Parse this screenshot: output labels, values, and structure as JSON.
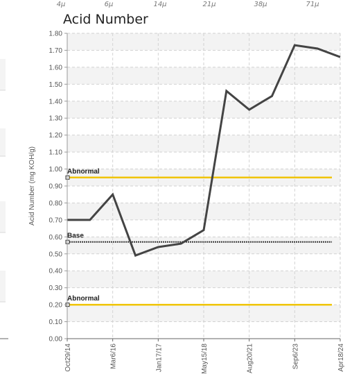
{
  "top_ticks": [
    "4μ",
    "6μ",
    "14μ",
    "21μ",
    "38μ",
    "71μ"
  ],
  "chart_data": {
    "type": "line",
    "title": "Acid Number",
    "ylabel": "Acid Number (mg KOH/g)",
    "xlabel": "",
    "ylim": [
      0.0,
      1.8
    ],
    "y_ticks": [
      "0.00",
      "0.10",
      "0.20",
      "0.30",
      "0.40",
      "0.50",
      "0.60",
      "0.70",
      "0.80",
      "0.90",
      "1.00",
      "1.10",
      "1.20",
      "1.30",
      "1.40",
      "1.50",
      "1.60",
      "1.70",
      "1.80"
    ],
    "x_tick_labels": [
      "Oct29/14",
      "Mar6/16",
      "Jan17/17",
      "May15/18",
      "Aug20/21",
      "Sep6/23",
      "Apr18/24"
    ],
    "grid": true,
    "series": [
      {
        "name": "",
        "color": "#444444",
        "values": [
          0.7,
          0.7,
          0.85,
          0.49,
          0.54,
          0.56,
          0.64,
          1.46,
          1.35,
          1.43,
          1.73,
          1.71,
          1.66
        ]
      }
    ],
    "reference_lines": [
      {
        "label": "Abnormal",
        "value": 0.95,
        "color": "#f0c400",
        "style": "solid"
      },
      {
        "label": "Base",
        "value": 0.57,
        "color": "#333333",
        "style": "dotted"
      },
      {
        "label": "Abnormal",
        "value": 0.2,
        "color": "#f0c400",
        "style": "solid"
      }
    ]
  }
}
